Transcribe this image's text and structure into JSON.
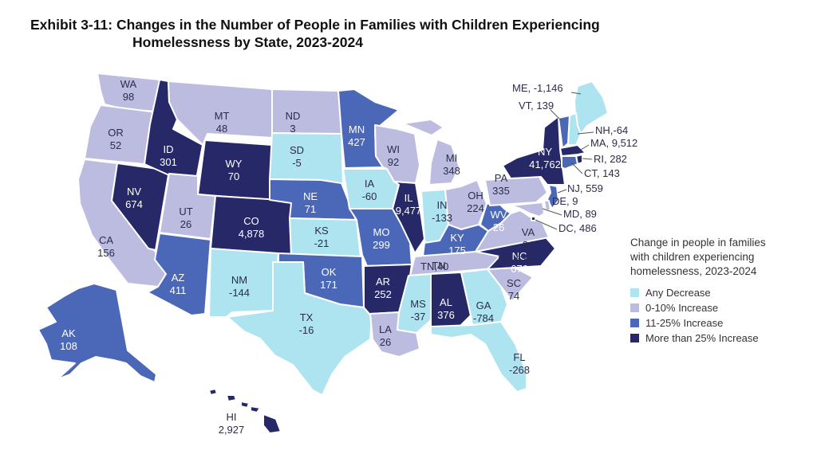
{
  "title": {
    "line1": "Exhibit 3-11: Changes in the Number of People in Families with Children Experiencing",
    "line2": "Homelessness by State, 2023-2024"
  },
  "colors": {
    "decrease": "#aee3f0",
    "inc_0_10": "#bcbbe0",
    "inc_11_25": "#4b67b8",
    "inc_25_plus": "#262868"
  },
  "legend": {
    "title_line1": "Change in people in families",
    "title_line2": "with children experiencing",
    "title_line3": "homelessness, 2023-2024",
    "items": [
      {
        "label": "Any Decrease",
        "category": "decrease"
      },
      {
        "label": "0-10% Increase",
        "category": "inc_0_10"
      },
      {
        "label": "11-25% Increase",
        "category": "inc_11_25"
      },
      {
        "label": "More than 25% Increase",
        "category": "inc_25_plus"
      }
    ]
  },
  "states": [
    {
      "abbr": "WA",
      "value": "98",
      "category": "inc_0_10"
    },
    {
      "abbr": "OR",
      "value": "52",
      "category": "inc_0_10"
    },
    {
      "abbr": "CA",
      "value": "156",
      "category": "inc_0_10"
    },
    {
      "abbr": "NV",
      "value": "674",
      "category": "inc_25_plus"
    },
    {
      "abbr": "ID",
      "value": "301",
      "category": "inc_25_plus"
    },
    {
      "abbr": "MT",
      "value": "48",
      "category": "inc_0_10"
    },
    {
      "abbr": "WY",
      "value": "70",
      "category": "inc_25_plus"
    },
    {
      "abbr": "UT",
      "value": "26",
      "category": "inc_0_10"
    },
    {
      "abbr": "AZ",
      "value": "411",
      "category": "inc_11_25"
    },
    {
      "abbr": "CO",
      "value": "4,878",
      "category": "inc_25_plus"
    },
    {
      "abbr": "NM",
      "value": "-144",
      "category": "decrease"
    },
    {
      "abbr": "ND",
      "value": "3",
      "category": "inc_0_10"
    },
    {
      "abbr": "SD",
      "value": "-5",
      "category": "decrease"
    },
    {
      "abbr": "NE",
      "value": "71",
      "category": "inc_11_25"
    },
    {
      "abbr": "KS",
      "value": "-21",
      "category": "decrease"
    },
    {
      "abbr": "OK",
      "value": "171",
      "category": "inc_11_25"
    },
    {
      "abbr": "TX",
      "value": "-16",
      "category": "decrease"
    },
    {
      "abbr": "MN",
      "value": "427",
      "category": "inc_11_25"
    },
    {
      "abbr": "IA",
      "value": "-60",
      "category": "decrease"
    },
    {
      "abbr": "MO",
      "value": "299",
      "category": "inc_11_25"
    },
    {
      "abbr": "AR",
      "value": "252",
      "category": "inc_25_plus"
    },
    {
      "abbr": "LA",
      "value": "26",
      "category": "inc_0_10"
    },
    {
      "abbr": "WI",
      "value": "92",
      "category": "inc_0_10"
    },
    {
      "abbr": "IL",
      "value": "9,477",
      "category": "inc_25_plus"
    },
    {
      "abbr": "MI",
      "value": "348",
      "category": "inc_0_10"
    },
    {
      "abbr": "IN",
      "value": "-133",
      "category": "decrease"
    },
    {
      "abbr": "OH",
      "value": "224",
      "category": "inc_0_10"
    },
    {
      "abbr": "KY",
      "value": "175",
      "category": "inc_11_25"
    },
    {
      "abbr": "TN",
      "value": "40",
      "category": "inc_0_10"
    },
    {
      "abbr": "MS",
      "value": "-37",
      "category": "decrease"
    },
    {
      "abbr": "AL",
      "value": "376",
      "category": "inc_25_plus"
    },
    {
      "abbr": "GA",
      "value": "-784",
      "category": "decrease"
    },
    {
      "abbr": "FL",
      "value": "-268",
      "category": "decrease"
    },
    {
      "abbr": "SC",
      "value": "74",
      "category": "inc_0_10"
    },
    {
      "abbr": "NC",
      "value": "676",
      "category": "inc_25_plus"
    },
    {
      "abbr": "VA",
      "value": "34",
      "category": "inc_0_10"
    },
    {
      "abbr": "WV",
      "value": "26",
      "category": "inc_11_25"
    },
    {
      "abbr": "PA",
      "value": "335",
      "category": "inc_0_10"
    },
    {
      "abbr": "NY",
      "value": "41,762",
      "category": "inc_25_plus"
    },
    {
      "abbr": "ME",
      "value": "-1,146",
      "category": "decrease"
    },
    {
      "abbr": "VT",
      "value": "139",
      "category": "inc_11_25"
    },
    {
      "abbr": "NH",
      "value": "-64",
      "category": "decrease"
    },
    {
      "abbr": "MA",
      "value": "9,512",
      "category": "inc_25_plus"
    },
    {
      "abbr": "RI",
      "value": "282",
      "category": "inc_25_plus"
    },
    {
      "abbr": "CT",
      "value": "143",
      "category": "inc_11_25"
    },
    {
      "abbr": "NJ",
      "value": "559",
      "category": "inc_11_25"
    },
    {
      "abbr": "DE",
      "value": "9",
      "category": "inc_0_10"
    },
    {
      "abbr": "MD",
      "value": "89",
      "category": "inc_0_10"
    },
    {
      "abbr": "DC",
      "value": "486",
      "category": "inc_25_plus"
    },
    {
      "abbr": "AK",
      "value": "108",
      "category": "inc_11_25"
    },
    {
      "abbr": "HI",
      "value": "2,927",
      "category": "inc_25_plus"
    }
  ],
  "side_labels": {
    "ME": "ME, -1,146",
    "VT": "VT, 139",
    "NH": "NH,-64",
    "MA": "MA, 9,512",
    "RI": "RI, 282",
    "CT": "CT, 143",
    "NJ": "NJ,  559",
    "DE": "DE, 9",
    "MD": "MD, 89",
    "DC": "DC, 486",
    "TN": "TN,40",
    "NC": "NC,676"
  }
}
